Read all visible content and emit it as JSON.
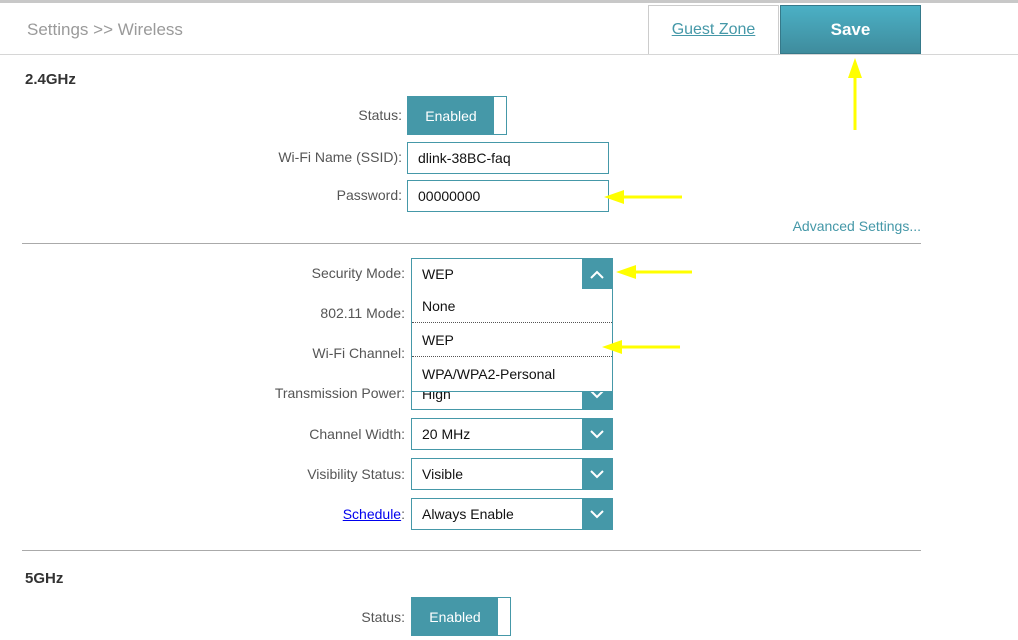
{
  "header": {
    "breadcrumb": "Settings >> Wireless",
    "guest_zone": "Guest Zone",
    "save": "Save"
  },
  "band24": {
    "title": "2.4GHz",
    "status_label": "Status:",
    "status_value": "Enabled",
    "ssid_label": "Wi-Fi Name (SSID):",
    "ssid_value": "dlink-38BC-faq",
    "password_label": "Password:",
    "password_value": "00000000",
    "advanced": "Advanced Settings...",
    "security_label": "Security Mode:",
    "security_value": "WEP",
    "security_options": [
      "None",
      "WEP",
      "WPA/WPA2-Personal"
    ],
    "mode_label": "802.11 Mode:",
    "channel_label": "Wi-Fi Channel:",
    "power_label": "Transmission Power:",
    "power_value": "High",
    "width_label": "Channel Width:",
    "width_value": "20 MHz",
    "visibility_label": "Visibility Status:",
    "visibility_value": "Visible",
    "schedule_label": "Schedule",
    "schedule_colon": ":",
    "schedule_value": "Always Enable"
  },
  "band5": {
    "title": "5GHz",
    "status_label": "Status:",
    "status_value": "Enabled"
  },
  "colors": {
    "accent": "#4598a8",
    "annotation_arrow": "#ffff00"
  }
}
